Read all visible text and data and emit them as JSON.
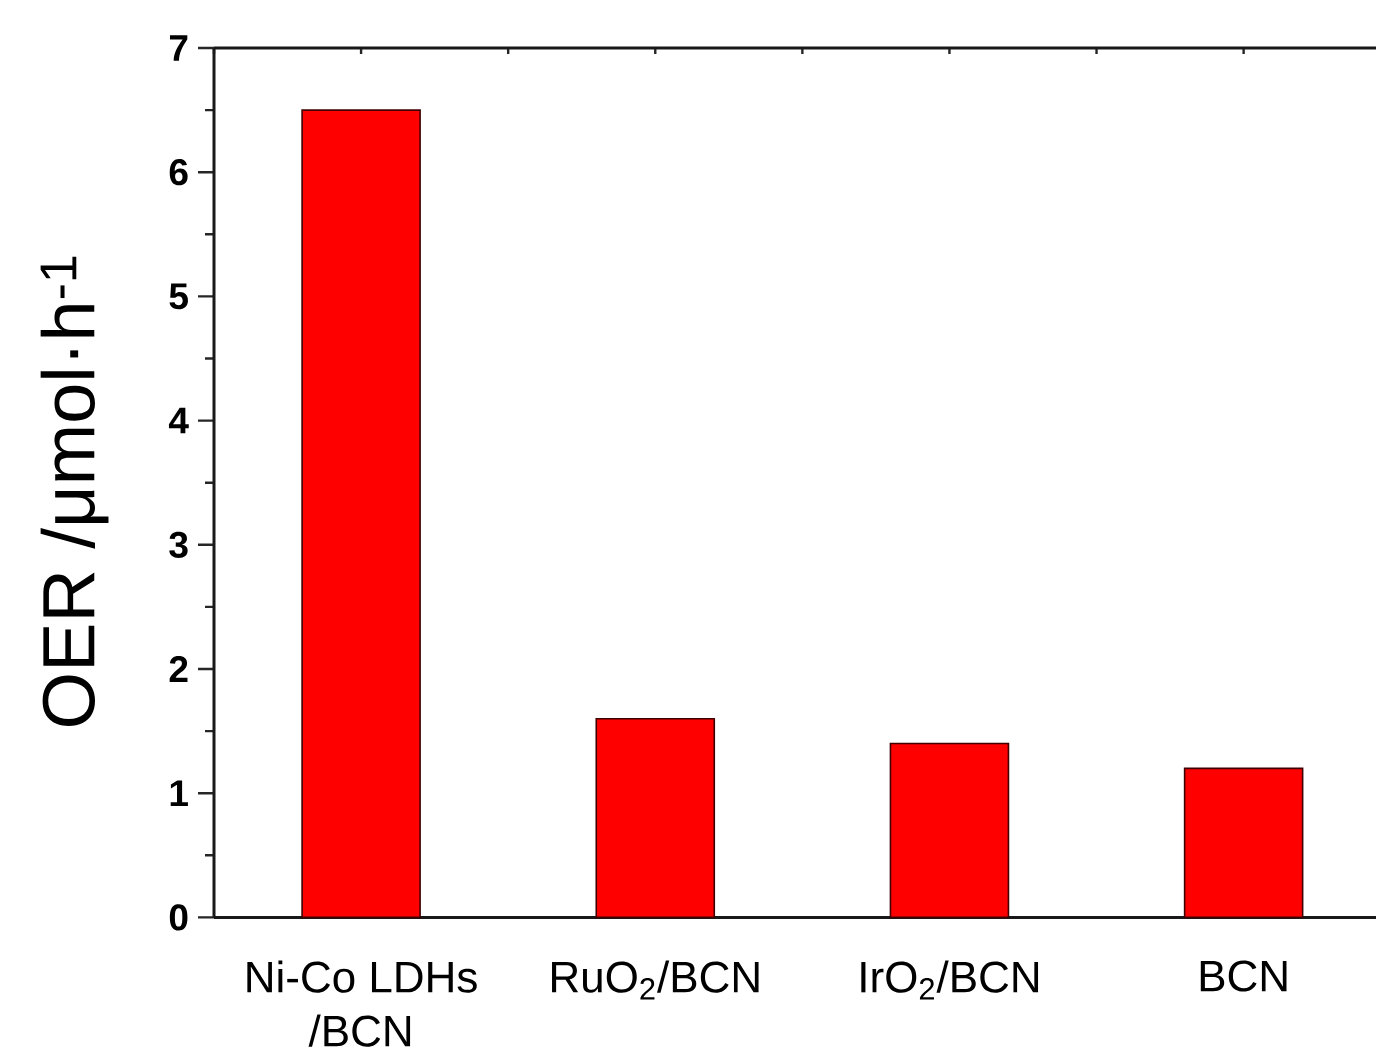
{
  "chart_data": {
    "type": "bar",
    "ylabel": "OER /μmol·h$^{-1}$",
    "categories": [
      "Ni-Co LDHs /BCN",
      "RuO$_{2}$/BCN",
      "IrO$_{2}$/BCN",
      "BCN"
    ],
    "values": [
      6.5,
      1.6,
      1.4,
      1.2
    ],
    "color": "#ff0000",
    "ylim": [
      0,
      7
    ],
    "yticks": [
      0,
      1,
      2,
      3,
      4,
      5,
      6,
      7
    ]
  }
}
